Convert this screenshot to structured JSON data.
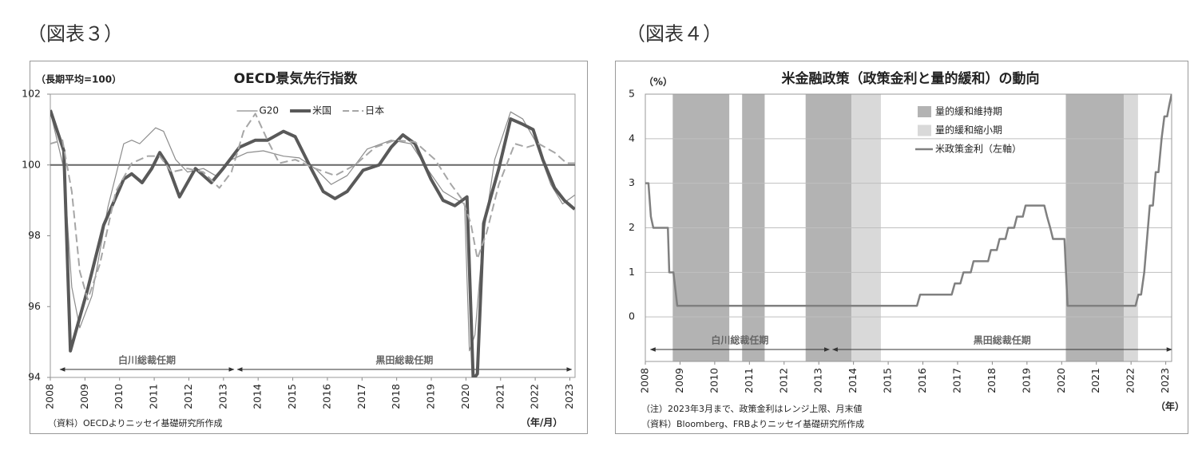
{
  "figure_labels": [
    "（図表３）",
    "（図表４）"
  ],
  "chart_data": [
    {
      "type": "line",
      "title": "OECD景気先行指数",
      "unit_label": "（長期平均=100）",
      "x_label": "（年/月）",
      "source": "（資料）OECDよりニッセイ基礎研究所作成",
      "xlim": [
        2008,
        2023.15
      ],
      "xticks": [
        2008,
        2009,
        2010,
        2011,
        2012,
        2013,
        2014,
        2015,
        2016,
        2017,
        2018,
        2019,
        2020,
        2021,
        2022,
        2023
      ],
      "ylim": [
        94,
        102
      ],
      "yticks": [
        94,
        96,
        98,
        100,
        102
      ],
      "grid": false,
      "reference_line": 100,
      "reference_color": "#666666",
      "legend": "top-center",
      "series": [
        {
          "name": "G20",
          "color": "#8c8c8c",
          "line_width": 1.2,
          "dashed": false,
          "x": [
            2008,
            2008.39,
            2008.62,
            2008.85,
            2009.2,
            2009.66,
            2010.12,
            2010.35,
            2010.58,
            2011.04,
            2011.27,
            2011.62,
            2011.96,
            2012.42,
            2012.77,
            2013.23,
            2013.69,
            2014.15,
            2014.73,
            2015.19,
            2015.65,
            2016.11,
            2016.57,
            2017.15,
            2017.84,
            2018.41,
            2018.88,
            2019.34,
            2019.68,
            2019.96,
            2020.1,
            2020.26,
            2020.49,
            2020.83,
            2021.29,
            2021.64,
            2021.99,
            2022.45,
            2022.79,
            2023.14
          ],
          "values": [
            101.5,
            99.9,
            96.55,
            95.4,
            96.3,
            98.8,
            100.6,
            100.7,
            100.6,
            101.05,
            100.95,
            100.15,
            99.8,
            99.9,
            99.7,
            100.15,
            100.35,
            100.4,
            100.25,
            100.2,
            99.9,
            99.45,
            99.7,
            100.45,
            100.7,
            100.6,
            99.9,
            99.25,
            99.05,
            98.9,
            94.75,
            95.2,
            97.9,
            100.15,
            101.5,
            101.3,
            100.7,
            99.45,
            98.9,
            99.15
          ]
        },
        {
          "name": "米国",
          "color": "#595959",
          "line_width": 4,
          "dashed": false,
          "x": [
            2008,
            2008.39,
            2008.58,
            2009.08,
            2009.54,
            2010.12,
            2010.35,
            2010.65,
            2010.93,
            2011.16,
            2011.39,
            2011.73,
            2011.96,
            2012.19,
            2012.42,
            2012.65,
            2012.99,
            2013.46,
            2013.92,
            2014.27,
            2014.73,
            2015.07,
            2015.53,
            2015.88,
            2016.22,
            2016.57,
            2017.03,
            2017.49,
            2017.84,
            2018.18,
            2018.53,
            2018.99,
            2019.34,
            2019.68,
            2020.03,
            2020.21,
            2020.33,
            2020.51,
            2020.72,
            2020.95,
            2021.29,
            2021.64,
            2021.94,
            2022.22,
            2022.56,
            2022.84,
            2023.14
          ],
          "values": [
            101.55,
            100.4,
            94.75,
            96.5,
            98.3,
            99.6,
            99.75,
            99.5,
            99.9,
            100.35,
            100,
            99.1,
            99.5,
            99.9,
            99.7,
            99.5,
            99.9,
            100.5,
            100.7,
            100.7,
            100.95,
            100.8,
            99.9,
            99.25,
            99.05,
            99.25,
            99.85,
            100,
            100.5,
            100.85,
            100.6,
            99.6,
            99,
            98.85,
            99.1,
            93.95,
            94.1,
            98.35,
            99.1,
            99.9,
            101.3,
            101.15,
            101,
            100.15,
            99.35,
            99,
            98.75
          ]
        },
        {
          "name": "日本",
          "color": "#a6a6a6",
          "line_width": 2,
          "dashed": true,
          "x": [
            2008,
            2008.35,
            2008.62,
            2008.85,
            2009.08,
            2009.43,
            2009.89,
            2010.35,
            2010.81,
            2011.16,
            2011.5,
            2011.96,
            2012.42,
            2012.88,
            2013.23,
            2013.58,
            2013.92,
            2014.27,
            2014.61,
            2015.07,
            2015.65,
            2016.22,
            2016.8,
            2017.38,
            2017.95,
            2018.53,
            2019.11,
            2019.57,
            2019.91,
            2020.14,
            2020.33,
            2020.6,
            2020.95,
            2021.41,
            2021.76,
            2022.1,
            2022.56,
            2022.91,
            2023.14
          ],
          "values": [
            100.6,
            100.7,
            99.25,
            97,
            96.2,
            97.2,
            99.25,
            100.05,
            100.25,
            100.25,
            99.8,
            99.9,
            99.8,
            99.35,
            99.8,
            100.95,
            101.45,
            100.7,
            100.05,
            100.15,
            99.9,
            99.7,
            100,
            100.5,
            100.7,
            100.65,
            100.15,
            99.45,
            99,
            98.35,
            97.35,
            98.1,
            99.45,
            100.6,
            100.5,
            100.6,
            100.35,
            100.05,
            100.05
          ]
        }
      ],
      "periods": [
        {
          "label": "白川総裁任期",
          "start": 2008.28,
          "end": 2013.3
        },
        {
          "label": "黒田総裁任期",
          "start": 2013.4,
          "end": 2023.05
        }
      ]
    },
    {
      "type": "line",
      "title": "米金融政策（政策金利と量的緩和）の動向",
      "unit_label": "（%）",
      "x_label": "（年）",
      "notes": [
        "（注）2023年3月まで、政策金利はレンジ上限、月末値",
        "（資料）Bloomberg、FRBよりニッセイ基礎研究所作成"
      ],
      "xlim": [
        2008,
        2023.17
      ],
      "xticks": [
        2008,
        2009,
        2010,
        2011,
        2012,
        2013,
        2014,
        2015,
        2016,
        2017,
        2018,
        2019,
        2020,
        2021,
        2022,
        2023
      ],
      "ylim": [
        -1,
        5
      ],
      "yticks": [
        0,
        1,
        2,
        3,
        4,
        5
      ],
      "grid": true,
      "legend": "top-right",
      "bands": [
        {
          "name": "量的緩和維持期",
          "color": "#b3b3b3",
          "spans": [
            [
              2008.79,
              2010.42
            ],
            [
              2010.79,
              2011.44
            ],
            [
              2012.62,
              2013.94
            ],
            [
              2020.12,
              2021.79
            ]
          ]
        },
        {
          "name": "量的緩和縮小期",
          "color": "#d9d9d9",
          "spans": [
            [
              2013.94,
              2014.79
            ],
            [
              2021.79,
              2022.2
            ]
          ]
        }
      ],
      "series": [
        {
          "name": "米政策金利（左軸）",
          "color": "#808080",
          "line_width": 2.5,
          "dashed": false,
          "x": [
            2008,
            2008.09,
            2008.16,
            2008.23,
            2008.65,
            2008.69,
            2008.81,
            2008.92,
            2015.83,
            2015.92,
            2016.83,
            2016.92,
            2017.08,
            2017.17,
            2017.38,
            2017.46,
            2017.88,
            2017.96,
            2018.13,
            2018.21,
            2018.38,
            2018.46,
            2018.63,
            2018.71,
            2018.88,
            2018.96,
            2019.5,
            2019.58,
            2019.67,
            2019.75,
            2020.08,
            2020.17,
            2022.13,
            2022.21,
            2022.29,
            2022.38,
            2022.46,
            2022.54,
            2022.63,
            2022.71,
            2022.79,
            2022.88,
            2022.96,
            2023.04,
            2023.1,
            2023.17
          ],
          "values": [
            3,
            3,
            2.25,
            2,
            2,
            1,
            1,
            0.25,
            0.25,
            0.5,
            0.5,
            0.75,
            0.75,
            1,
            1,
            1.25,
            1.25,
            1.5,
            1.5,
            1.75,
            1.75,
            2,
            2,
            2.25,
            2.25,
            2.5,
            2.5,
            2.25,
            2,
            1.75,
            1.75,
            0.25,
            0.25,
            0.5,
            0.5,
            1,
            1.75,
            2.5,
            2.5,
            3.25,
            3.25,
            4,
            4.5,
            4.5,
            4.75,
            5
          ]
        }
      ],
      "periods": [
        {
          "label": "白川総裁任期",
          "start": 2008.15,
          "end": 2013.3
        },
        {
          "label": "黒田総裁任期",
          "start": 2013.4,
          "end": 2023.17
        }
      ]
    }
  ]
}
